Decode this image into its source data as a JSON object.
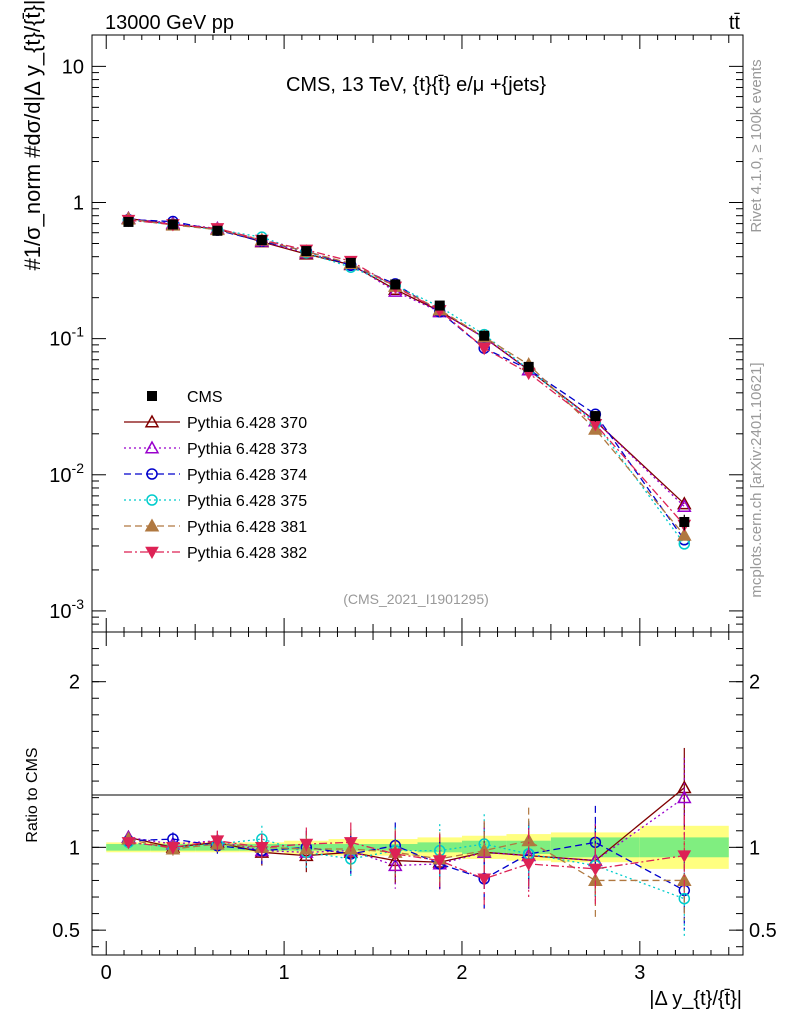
{
  "header": {
    "energy_label": "13000 GeV pp",
    "process_label": "tt̄",
    "side_rivet": "Rivet 4.1.0, ≥ 100k events",
    "side_mcplots": "mcplots.cern.ch [arXiv:2401.10621]"
  },
  "chart_data": {
    "type": "line",
    "title": "CMS, 13 TeV, {t}{t̄} e/μ +{jets}",
    "analysis_tag": "(CMS_2021_I1901295)",
    "xlabel": "|Δ y_{t}/{t̄}|",
    "ylabel": "#1/σ_norm #dσ/d|Δ y_{t}/{t̄}|",
    "ratio_ylabel": "Ratio to CMS",
    "xlim": [
      -0.08,
      3.58
    ],
    "ylim": [
      0.0007,
      17
    ],
    "yscale": "log",
    "ratio_ylim": [
      0.35,
      2.3
    ],
    "x_ticks": [
      "0",
      "1",
      "2",
      "3"
    ],
    "y_ticks": [
      "10^-3",
      "10^-2",
      "10^-1",
      "1",
      "10"
    ],
    "ratio_ticks": [
      "0.5",
      "1",
      "2"
    ],
    "x": [
      0.125,
      0.375,
      0.625,
      0.875,
      1.125,
      1.375,
      1.625,
      1.875,
      2.125,
      2.375,
      2.75,
      3.25
    ],
    "bin_edges": [
      0,
      0.25,
      0.5,
      0.75,
      1.0,
      1.25,
      1.5,
      1.75,
      2.0,
      2.25,
      2.5,
      3.0,
      3.5
    ],
    "data": {
      "name": "CMS",
      "values": [
        0.72,
        0.69,
        0.62,
        0.53,
        0.44,
        0.36,
        0.25,
        0.175,
        0.105,
        0.062,
        0.027,
        0.0045
      ],
      "band_stat": [
        0.02,
        0.02,
        0.02,
        0.02,
        0.02,
        0.02,
        0.02,
        0.03,
        0.04,
        0.04,
        0.06,
        0.06
      ],
      "band_total": [
        0.03,
        0.03,
        0.03,
        0.03,
        0.04,
        0.05,
        0.05,
        0.06,
        0.07,
        0.08,
        0.09,
        0.13
      ]
    },
    "series": [
      {
        "name": "Pythia 6.428 370",
        "color": "#800000",
        "dash": "solid",
        "marker": "triangle-open",
        "ratio": [
          1.06,
          1.0,
          1.03,
          0.97,
          0.95,
          0.97,
          0.92,
          0.91,
          0.97,
          0.95,
          0.92,
          1.36
        ]
      },
      {
        "name": "Pythia 6.428 373",
        "color": "#9900cc",
        "dash": "dot",
        "marker": "triangle-open",
        "ratio": [
          1.06,
          1.02,
          1.04,
          0.98,
          0.97,
          0.98,
          0.89,
          0.9,
          0.97,
          0.95,
          0.92,
          1.3
        ]
      },
      {
        "name": "Pythia 6.428 374",
        "color": "#0000cc",
        "dash": "dash",
        "marker": "circle-open",
        "ratio": [
          1.04,
          1.05,
          1.01,
          0.98,
          1.0,
          0.96,
          1.01,
          0.9,
          0.81,
          0.96,
          1.03,
          0.74
        ]
      },
      {
        "name": "Pythia 6.428 375",
        "color": "#00cccc",
        "dash": "dot",
        "marker": "circle-open",
        "ratio": [
          1.03,
          1.0,
          1.02,
          1.05,
          0.97,
          0.93,
          0.98,
          0.98,
          1.02,
          0.96,
          0.89,
          0.69
        ]
      },
      {
        "name": "Pythia 6.428 381",
        "color": "#b07840",
        "dash": "dash",
        "marker": "triangle-full",
        "ratio": [
          1.05,
          0.99,
          1.02,
          1.0,
          0.99,
          0.99,
          0.97,
          0.93,
          0.98,
          1.04,
          0.8,
          0.8
        ]
      },
      {
        "name": "Pythia 6.428 382",
        "color": "#dd2255",
        "dash": "dashdot",
        "marker": "triangledown-full",
        "ratio": [
          1.03,
          1.0,
          1.04,
          1.0,
          1.02,
          1.03,
          0.96,
          0.92,
          0.81,
          0.9,
          0.87,
          0.95
        ]
      }
    ]
  }
}
